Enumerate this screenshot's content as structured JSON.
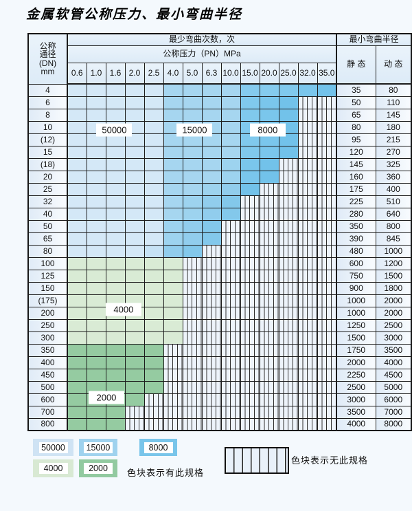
{
  "title": "金属软管公称压力、最小弯曲半径",
  "table": {
    "corner_lines": [
      "公称",
      "通径",
      "(DN)",
      "mm"
    ],
    "cycles_header": "最少弯曲次数，次",
    "pressure_header": "公称压力（PN）MPa",
    "radius_header": "最小弯曲半径",
    "static_label": "静 态",
    "dynamic_label": "动 态",
    "pressure_columns": [
      "0.6",
      "1.0",
      "1.6",
      "2.0",
      "2.5",
      "4.0",
      "5.0",
      "6.3",
      "10.0",
      "15.0",
      "20.0",
      "25.0",
      "32.0",
      "35.0"
    ],
    "rows": [
      {
        "dn": "4",
        "colored": 14,
        "static": "35",
        "dynamic": "80"
      },
      {
        "dn": "6",
        "colored": 12,
        "static": "50",
        "dynamic": "110"
      },
      {
        "dn": "8",
        "colored": 12,
        "static": "65",
        "dynamic": "145"
      },
      {
        "dn": "10",
        "colored": 12,
        "static": "80",
        "dynamic": "180"
      },
      {
        "dn": "(12)",
        "colored": 12,
        "static": "95",
        "dynamic": "215"
      },
      {
        "dn": "15",
        "colored": 12,
        "static": "120",
        "dynamic": "270"
      },
      {
        "dn": "(18)",
        "colored": 11,
        "static": "145",
        "dynamic": "325"
      },
      {
        "dn": "20",
        "colored": 11,
        "static": "160",
        "dynamic": "360"
      },
      {
        "dn": "25",
        "colored": 10,
        "static": "175",
        "dynamic": "400"
      },
      {
        "dn": "32",
        "colored": 9,
        "static": "225",
        "dynamic": "510"
      },
      {
        "dn": "40",
        "colored": 9,
        "static": "280",
        "dynamic": "640"
      },
      {
        "dn": "50",
        "colored": 8,
        "static": "350",
        "dynamic": "800"
      },
      {
        "dn": "65",
        "colored": 8,
        "static": "390",
        "dynamic": "845"
      },
      {
        "dn": "80",
        "colored": 7,
        "static": "480",
        "dynamic": "1000"
      },
      {
        "dn": "100",
        "colored": 6,
        "static": "600",
        "dynamic": "1200"
      },
      {
        "dn": "125",
        "colored": 6,
        "static": "750",
        "dynamic": "1500"
      },
      {
        "dn": "150",
        "colored": 6,
        "static": "900",
        "dynamic": "1800"
      },
      {
        "dn": "(175)",
        "colored": 6,
        "static": "1000",
        "dynamic": "2000"
      },
      {
        "dn": "200",
        "colored": 6,
        "static": "1000",
        "dynamic": "2000"
      },
      {
        "dn": "250",
        "colored": 6,
        "static": "1250",
        "dynamic": "2500"
      },
      {
        "dn": "300",
        "colored": 6,
        "static": "1500",
        "dynamic": "3000"
      },
      {
        "dn": "350",
        "colored": 5,
        "static": "1750",
        "dynamic": "3500"
      },
      {
        "dn": "400",
        "colored": 5,
        "static": "2000",
        "dynamic": "4000"
      },
      {
        "dn": "450",
        "colored": 5,
        "static": "2250",
        "dynamic": "4500"
      },
      {
        "dn": "500",
        "colored": 5,
        "static": "2500",
        "dynamic": "5000"
      },
      {
        "dn": "600",
        "colored": 4,
        "static": "3000",
        "dynamic": "6000"
      },
      {
        "dn": "700",
        "colored": 3,
        "static": "3500",
        "dynamic": "7000"
      },
      {
        "dn": "800",
        "colored": 3,
        "static": "4000",
        "dynamic": "8000"
      }
    ],
    "blue_rows_last_index": 13,
    "green_light_last_index": 20
  },
  "overlay_labels": [
    "50000",
    "15000",
    "8000",
    "4000",
    "2000"
  ],
  "colors": {
    "blue_50000": "#d4e8f7",
    "blue_15000": "#a6d6f0",
    "blue_8000": "#85cbee",
    "blue_edge": "#5fb9e6",
    "green_4000": "#d9ebd5",
    "green_2000": "#95cba1",
    "hatch_bg": "#eef4fb",
    "hatch_line": "#2e2e2e"
  },
  "legend": {
    "has_spec_items": [
      {
        "value": "50000",
        "color": "#cfe3f4"
      },
      {
        "value": "15000",
        "color": "#9fd2ee"
      },
      {
        "value": "8000",
        "color": "#79c5ea"
      },
      {
        "value": "4000",
        "color": "#d8e9d3"
      },
      {
        "value": "2000",
        "color": "#92caa0"
      }
    ],
    "has_spec_text": "色块表示有此规格",
    "no_spec_text": "色块表示无此规格"
  }
}
